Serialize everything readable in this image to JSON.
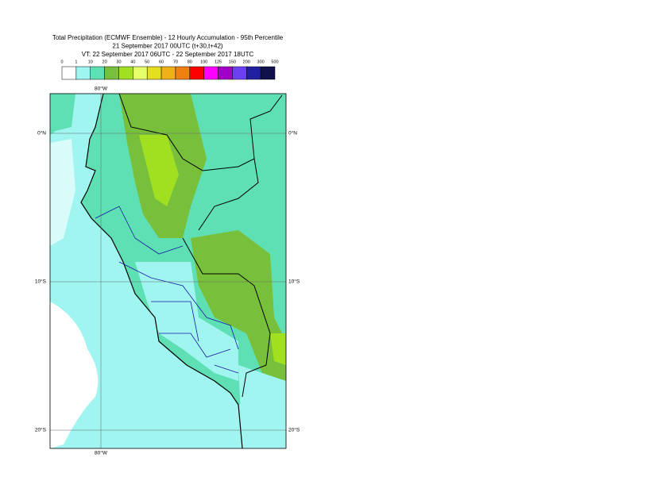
{
  "header": {
    "title_lines": [
      "Total Precipitation (ECMWF Ensemble) - 12 Hourly Accumulation - 95th Percentile",
      "21 September 2017 00UTC (t+30,t+42)",
      "VT: 22 September 2017 06UTC - 22 September 2017 18UTC"
    ]
  },
  "legend": {
    "thresholds": [
      "0",
      "1",
      "10",
      "20",
      "30",
      "40",
      "50",
      "60",
      "70",
      "80",
      "100",
      "125",
      "150",
      "200",
      "300",
      "500"
    ],
    "colors": [
      "#ffffff",
      "#a0f5f0",
      "#5fe0b4",
      "#78c03c",
      "#a0e020",
      "#e4ff6a",
      "#e4e020",
      "#f0b018",
      "#f08010",
      "#ff0000",
      "#ff00ff",
      "#a000c8",
      "#6a40f0",
      "#2020a0",
      "#10104c"
    ]
  },
  "map": {
    "lon_label": "80°W",
    "lat_labels": [
      "0°N",
      "10°S",
      "20°S"
    ]
  }
}
